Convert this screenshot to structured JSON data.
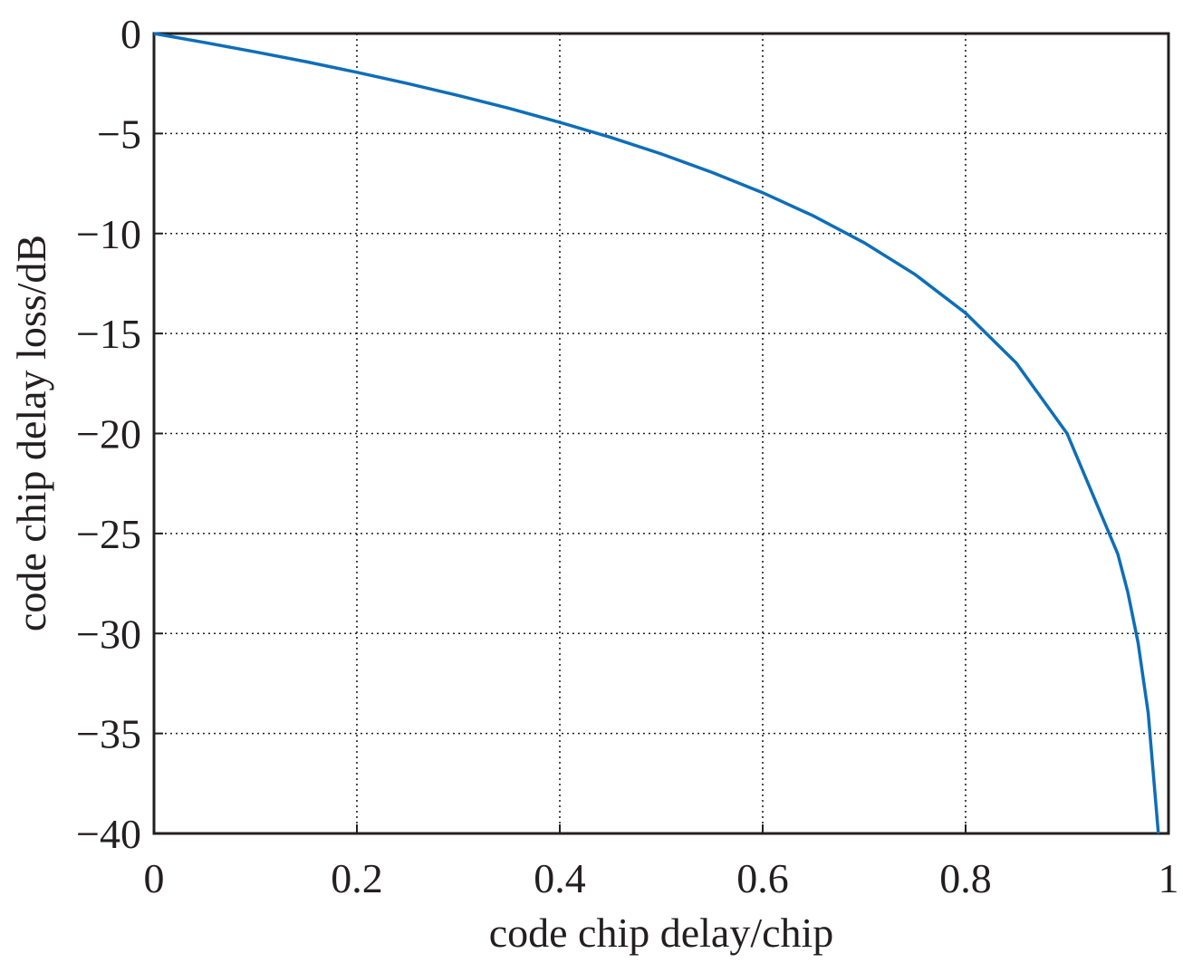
{
  "chart_data": {
    "type": "line",
    "x_label": "code chip delay/chip",
    "y_label": "code chip delay loss/dB",
    "x": [
      0,
      0.05,
      0.1,
      0.15,
      0.2,
      0.25,
      0.3,
      0.35,
      0.4,
      0.45,
      0.5,
      0.55,
      0.6,
      0.65,
      0.7,
      0.75,
      0.8,
      0.85,
      0.9,
      0.95,
      0.96,
      0.97,
      0.98,
      0.99
    ],
    "series": [
      {
        "color": "#0e6eb8",
        "values": [
          0,
          -0.45,
          -0.92,
          -1.41,
          -1.94,
          -2.5,
          -3.1,
          -3.74,
          -4.44,
          -5.19,
          -6.02,
          -6.94,
          -7.96,
          -9.12,
          -10.46,
          -12.04,
          -13.98,
          -16.48,
          -20,
          -26.02,
          -27.96,
          -30.46,
          -33.98,
          -40
        ]
      }
    ],
    "xlim": [
      0,
      1
    ],
    "xticks": [
      0,
      0.2,
      0.4,
      0.6,
      0.8,
      1
    ],
    "ylim": [
      -40,
      0
    ],
    "yticks": [
      0,
      {
        "value": -5,
        "label": "−5"
      },
      {
        "value": -10,
        "label": "−10"
      },
      {
        "value": -15,
        "label": "−15"
      },
      {
        "value": -20,
        "label": "−20"
      },
      {
        "value": -25,
        "label": "−25"
      },
      {
        "value": -30,
        "label": "−30"
      },
      {
        "value": -35,
        "label": "−35"
      },
      {
        "value": -40,
        "label": "−40"
      }
    ],
    "grid": true
  }
}
